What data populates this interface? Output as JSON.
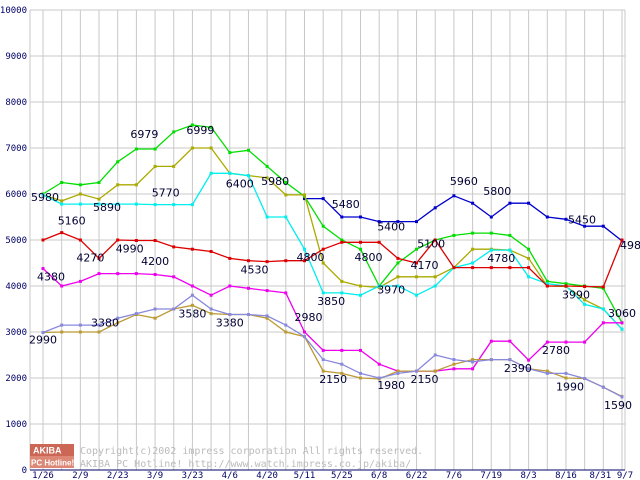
{
  "chart_data": {
    "type": "line",
    "xlabel": "",
    "ylabel": "",
    "ylim": [
      0,
      10000
    ],
    "yticks": [
      0,
      1000,
      2000,
      3000,
      4000,
      5000,
      6000,
      7000,
      8000,
      9000,
      10000
    ],
    "grid": true,
    "x_tick_labels": [
      {
        "i": 0,
        "label": "1/26"
      },
      {
        "i": 2,
        "label": "2/9"
      },
      {
        "i": 4,
        "label": "2/23"
      },
      {
        "i": 6,
        "label": "3/9"
      },
      {
        "i": 8,
        "label": "3/23"
      },
      {
        "i": 10,
        "label": "4/6"
      },
      {
        "i": 12,
        "label": "4/20"
      },
      {
        "i": 14,
        "label": "5/11"
      },
      {
        "i": 16,
        "label": "5/25"
      },
      {
        "i": 18,
        "label": "6/8"
      },
      {
        "i": 20,
        "label": "6/22"
      },
      {
        "i": 22,
        "label": "7/6"
      },
      {
        "i": 24,
        "label": "7/19"
      },
      {
        "i": 26,
        "label": "8/3"
      },
      {
        "i": 28,
        "label": "8/16"
      },
      {
        "i": 30,
        "label": "8/31"
      },
      {
        "i": 31,
        "label": "9/7"
      }
    ],
    "series": [
      {
        "color": "#0000cc",
        "values": [
          null,
          null,
          null,
          null,
          null,
          null,
          null,
          null,
          null,
          null,
          null,
          null,
          null,
          null,
          5900,
          5900,
          5500,
          5500,
          5400,
          5400,
          5400,
          5700,
          5960,
          5800,
          5500,
          5800,
          5800,
          5500,
          5450,
          5300,
          5300,
          4980
        ]
      },
      {
        "color": "#00dd00",
        "values": [
          6000,
          6250,
          6200,
          6250,
          6700,
          6979,
          6979,
          7350,
          7500,
          7450,
          6900,
          6950,
          6600,
          6250,
          5950,
          5300,
          5000,
          4800,
          4000,
          4500,
          4800,
          5000,
          5100,
          5150,
          5150,
          5100,
          4800,
          4100,
          4050,
          4000,
          3950,
          3200
        ]
      },
      {
        "color": "#aaaa00",
        "values": [
          5980,
          5850,
          6000,
          5890,
          6200,
          6200,
          6600,
          6600,
          6999,
          6999,
          6450,
          6400,
          6350,
          5980,
          5980,
          4500,
          4100,
          4000,
          3970,
          4200,
          4200,
          4200,
          4400,
          4800,
          4800,
          4780,
          4600,
          4000,
          3990,
          3700,
          3500,
          3060
        ]
      },
      {
        "color": "#00eeee",
        "values": [
          5980,
          5780,
          5780,
          5780,
          5780,
          5780,
          5770,
          5770,
          5770,
          6450,
          6450,
          6400,
          5500,
          5500,
          4800,
          3850,
          3850,
          3800,
          4000,
          4000,
          3800,
          4000,
          4400,
          4500,
          4780,
          4780,
          4200,
          4050,
          4000,
          3600,
          3500,
          3060
        ]
      },
      {
        "color": "#dd0000",
        "values": [
          5000,
          5160,
          5000,
          4600,
          5000,
          4990,
          4990,
          4850,
          4800,
          4750,
          4600,
          4550,
          4530,
          4550,
          4550,
          4800,
          4950,
          4950,
          4950,
          4600,
          4500,
          5000,
          4400,
          4400,
          4400,
          4400,
          4400,
          4000,
          4000,
          3990,
          3980,
          5000
        ]
      },
      {
        "color": "#ee00ee",
        "values": [
          4380,
          4000,
          4100,
          4270,
          4270,
          4270,
          4250,
          4200,
          4000,
          3800,
          4000,
          3950,
          3900,
          3850,
          3000,
          2600,
          2600,
          2600,
          2300,
          2150,
          2150,
          2150,
          2200,
          2200,
          2800,
          2800,
          2390,
          2780,
          2780,
          2780,
          3200,
          3200
        ]
      },
      {
        "color": "#bb9933",
        "values": [
          2990,
          3000,
          3000,
          3000,
          3200,
          3380,
          3300,
          3500,
          3580,
          3400,
          3380,
          3380,
          3300,
          3000,
          2900,
          2150,
          2100,
          2000,
          1980,
          2150,
          2150,
          2150,
          2300,
          2400,
          2400,
          2400,
          2200,
          2150,
          2000,
          1990,
          1800,
          1600
        ]
      },
      {
        "color": "#8888dd",
        "values": [
          2990,
          3150,
          3150,
          3150,
          3300,
          3400,
          3500,
          3500,
          3800,
          3500,
          3380,
          3380,
          3350,
          3150,
          2900,
          2400,
          2300,
          2100,
          2000,
          2100,
          2150,
          2500,
          2400,
          2350,
          2400,
          2400,
          2200,
          2100,
          2100,
          1990,
          1800,
          1590
        ]
      }
    ],
    "data_labels": [
      {
        "text": "5980",
        "i": 0,
        "v": 5980
      },
      {
        "text": "5890",
        "i": 3,
        "v": 5890
      },
      {
        "text": "6979",
        "i": 5,
        "v": 6979
      },
      {
        "text": "6999",
        "i": 8,
        "v": 6999
      },
      {
        "text": "5770",
        "i": 7,
        "v": 5770
      },
      {
        "text": "6400",
        "i": 10,
        "v": 6400
      },
      {
        "text": "5980",
        "i": 12,
        "v": 5980
      },
      {
        "text": "5160",
        "i": 1,
        "v": 5160
      },
      {
        "text": "4990",
        "i": 4,
        "v": 4990
      },
      {
        "text": "4530",
        "i": 11,
        "v": 4530
      },
      {
        "text": "4800",
        "i": 14,
        "v": 4800
      },
      {
        "text": "5480",
        "i": 16,
        "v": 5480
      },
      {
        "text": "4800",
        "i": 17,
        "v": 4800
      },
      {
        "text": "5400",
        "i": 18,
        "v": 5400
      },
      {
        "text": "5960",
        "i": 22,
        "v": 5960
      },
      {
        "text": "5800",
        "i": 24,
        "v": 5800
      },
      {
        "text": "5450",
        "i": 28,
        "v": 5450
      },
      {
        "text": "4980",
        "i": 31,
        "v": 4980
      },
      {
        "text": "5100",
        "i": 21,
        "v": 5100
      },
      {
        "text": "4780",
        "i": 24,
        "v": 4780
      },
      {
        "text": "3850",
        "i": 15,
        "v": 3850
      },
      {
        "text": "3970",
        "i": 18,
        "v": 3970
      },
      {
        "text": "4170",
        "i": 20,
        "v": 4170
      },
      {
        "text": "3990",
        "i": 28,
        "v": 3990
      },
      {
        "text": "3060",
        "i": 31,
        "v": 3060
      },
      {
        "text": "4380",
        "i": 0,
        "v": 4380
      },
      {
        "text": "4270",
        "i": 2,
        "v": 4270
      },
      {
        "text": "4200",
        "i": 6,
        "v": 4200
      },
      {
        "text": "2990",
        "i": 0,
        "v": 2990
      },
      {
        "text": "3380",
        "i": 3,
        "v": 3380
      },
      {
        "text": "3580",
        "i": 8,
        "v": 3580
      },
      {
        "text": "3380",
        "i": 10,
        "v": 3380
      },
      {
        "text": "2980",
        "i": 14,
        "v": 2980
      },
      {
        "text": "2150",
        "i": 15,
        "v": 2150
      },
      {
        "text": "1980",
        "i": 18,
        "v": 1980
      },
      {
        "text": "2150",
        "i": 20,
        "v": 2150
      },
      {
        "text": "2390",
        "i": 25,
        "v": 2390
      },
      {
        "text": "2780",
        "i": 28,
        "v": 2780
      },
      {
        "text": "1990",
        "i": 28,
        "v": 1990
      },
      {
        "text": "1590",
        "i": 31,
        "v": 1590
      }
    ]
  },
  "watermark": {
    "logo_top": "AKIBA",
    "logo_bottom": "PC Hotline!",
    "line1": "Copyright(c)2002 impress corporation All rights reserved.",
    "line2": "AKIBA PC Hotline!  http://www.watch.impress.co.jp/akiba/"
  },
  "colors": {
    "grid": "#c8c8c8",
    "axis": "#000066",
    "logo_bg": "#cc6655"
  }
}
